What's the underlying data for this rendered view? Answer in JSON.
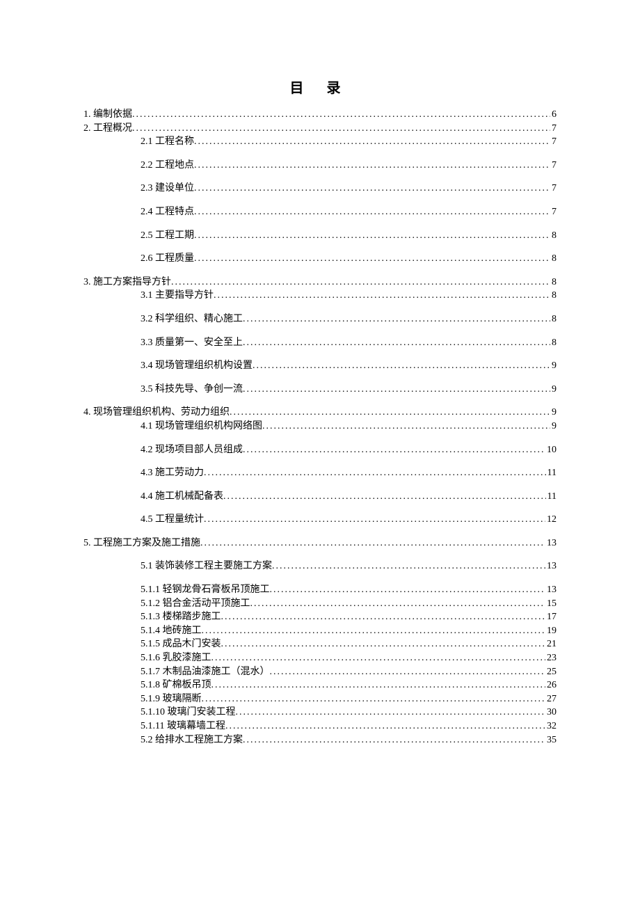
{
  "title": "目 录",
  "entries": [
    {
      "level": 0,
      "label": "1. 编制依据",
      "page": "6",
      "gapAfter": false
    },
    {
      "level": 0,
      "label": "2. 工程概况",
      "page": "7",
      "gapAfter": false
    },
    {
      "level": 1,
      "label": "2.1 工程名称",
      "page": "7",
      "gapAfter": true
    },
    {
      "level": 1,
      "label": "2.2 工程地点",
      "page": "7",
      "gapAfter": true
    },
    {
      "level": 1,
      "label": "2.3 建设单位",
      "page": "7",
      "gapAfter": true
    },
    {
      "level": 1,
      "label": "2.4 工程特点",
      "page": "7",
      "gapAfter": true
    },
    {
      "level": 1,
      "label": "2.5 工程工期",
      "page": "8",
      "gapAfter": true
    },
    {
      "level": 1,
      "label": "2.6 工程质量",
      "page": "8",
      "gapAfter": true
    },
    {
      "level": 0,
      "label": "3. 施工方案指导方针",
      "page": "8",
      "gapAfter": false
    },
    {
      "level": 1,
      "label": "3.1 主要指导方针",
      "page": "8",
      "gapAfter": true
    },
    {
      "level": 1,
      "label": "3.2 科学组织、精心施工",
      "page": "8",
      "gapAfter": true
    },
    {
      "level": 1,
      "label": "3.3 质量第一、安全至上",
      "page": "8",
      "gapAfter": true
    },
    {
      "level": 1,
      "label": "3.4 现场管理组织机构设置",
      "page": "9",
      "gapAfter": true
    },
    {
      "level": 1,
      "label": "3.5 科技先导、争创一流",
      "page": "9",
      "gapAfter": true
    },
    {
      "level": 0,
      "label": "4. 现场管理组织机构、劳动力组织",
      "page": "9",
      "gapAfter": false
    },
    {
      "level": 1,
      "label": "4.1 现场管理组织机构网络图",
      "page": "9",
      "gapAfter": true
    },
    {
      "level": 1,
      "label": "4.2 现场项目部人员组成",
      "page": "10",
      "gapAfter": true
    },
    {
      "level": 1,
      "label": "4.3 施工劳动力",
      "page": "11",
      "gapAfter": true
    },
    {
      "level": 1,
      "label": "4.4 施工机械配备表",
      "page": "11",
      "gapAfter": true
    },
    {
      "level": 1,
      "label": "4.5 工程量统计",
      "page": "12",
      "gapAfter": true
    },
    {
      "level": 0,
      "label": "5. 工程施工方案及施工措施",
      "page": "13",
      "gapAfter": true
    },
    {
      "level": 1,
      "label": "5.1 装饰装修工程主要施工方案",
      "page": "13",
      "gapAfter": true
    },
    {
      "level": 2,
      "label": "5.1.1 轻钢龙骨石膏板吊顶施工",
      "page": "13",
      "gapAfter": false
    },
    {
      "level": 2,
      "label": "5.1.2 铝合金活动平顶施工",
      "page": "15",
      "gapAfter": false
    },
    {
      "level": 2,
      "label": "5.1.3 楼梯踏步施工",
      "page": "17",
      "gapAfter": false
    },
    {
      "level": 2,
      "label": "5.1.4 地砖施工",
      "page": "19",
      "gapAfter": false
    },
    {
      "level": 2,
      "label": "5.1.5 成品木门安装",
      "page": "21",
      "gapAfter": false
    },
    {
      "level": 2,
      "label": "5.1.6 乳胶漆施工",
      "page": "23",
      "gapAfter": false
    },
    {
      "level": 2,
      "label": "5.1.7 木制品油漆施工（混水）",
      "page": "25",
      "gapAfter": false
    },
    {
      "level": 2,
      "label": "5.1.8 矿棉板吊顶",
      "page": "26",
      "gapAfter": false
    },
    {
      "level": 2,
      "label": "5.1.9 玻璃隔断",
      "page": "27",
      "gapAfter": false
    },
    {
      "level": 2,
      "label": "5.1.10 玻璃门安装工程",
      "page": "30",
      "gapAfter": false
    },
    {
      "level": 2,
      "label": "5.1.11 玻璃幕墙工程",
      "page": "32",
      "gapAfter": false
    },
    {
      "level": 1,
      "label": "5.2 给排水工程施工方案",
      "page": "35",
      "gapAfter": false
    }
  ]
}
